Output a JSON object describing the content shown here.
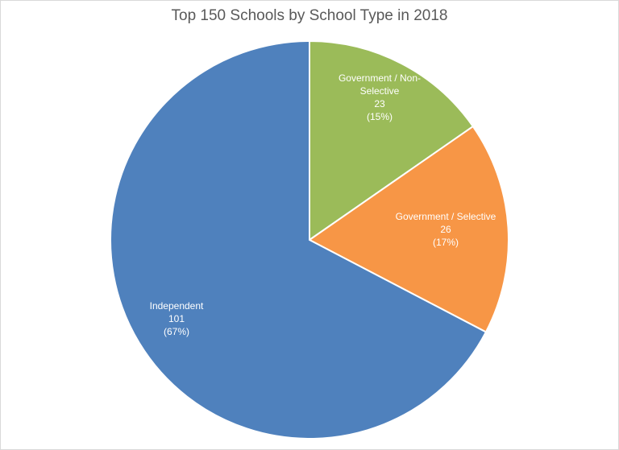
{
  "chart_data": {
    "type": "pie",
    "title": "Top 150 Schools by School Type in 2018",
    "start_angle": "12 o'clock, clockwise",
    "slices": [
      {
        "label": "Government / Non-Selective",
        "label_lines": [
          "Government / Non-",
          "Selective"
        ],
        "value": 23,
        "percent": "(15%)",
        "color": "#9BBB59"
      },
      {
        "label": "Government / Selective",
        "label_lines": [
          "Government / Selective"
        ],
        "value": 26,
        "percent": "(17%)",
        "color": "#F79646"
      },
      {
        "label": "Independent",
        "label_lines": [
          "Independent"
        ],
        "value": 101,
        "percent": "(67%)",
        "color": "#4F81BD"
      }
    ],
    "legend": "none"
  }
}
